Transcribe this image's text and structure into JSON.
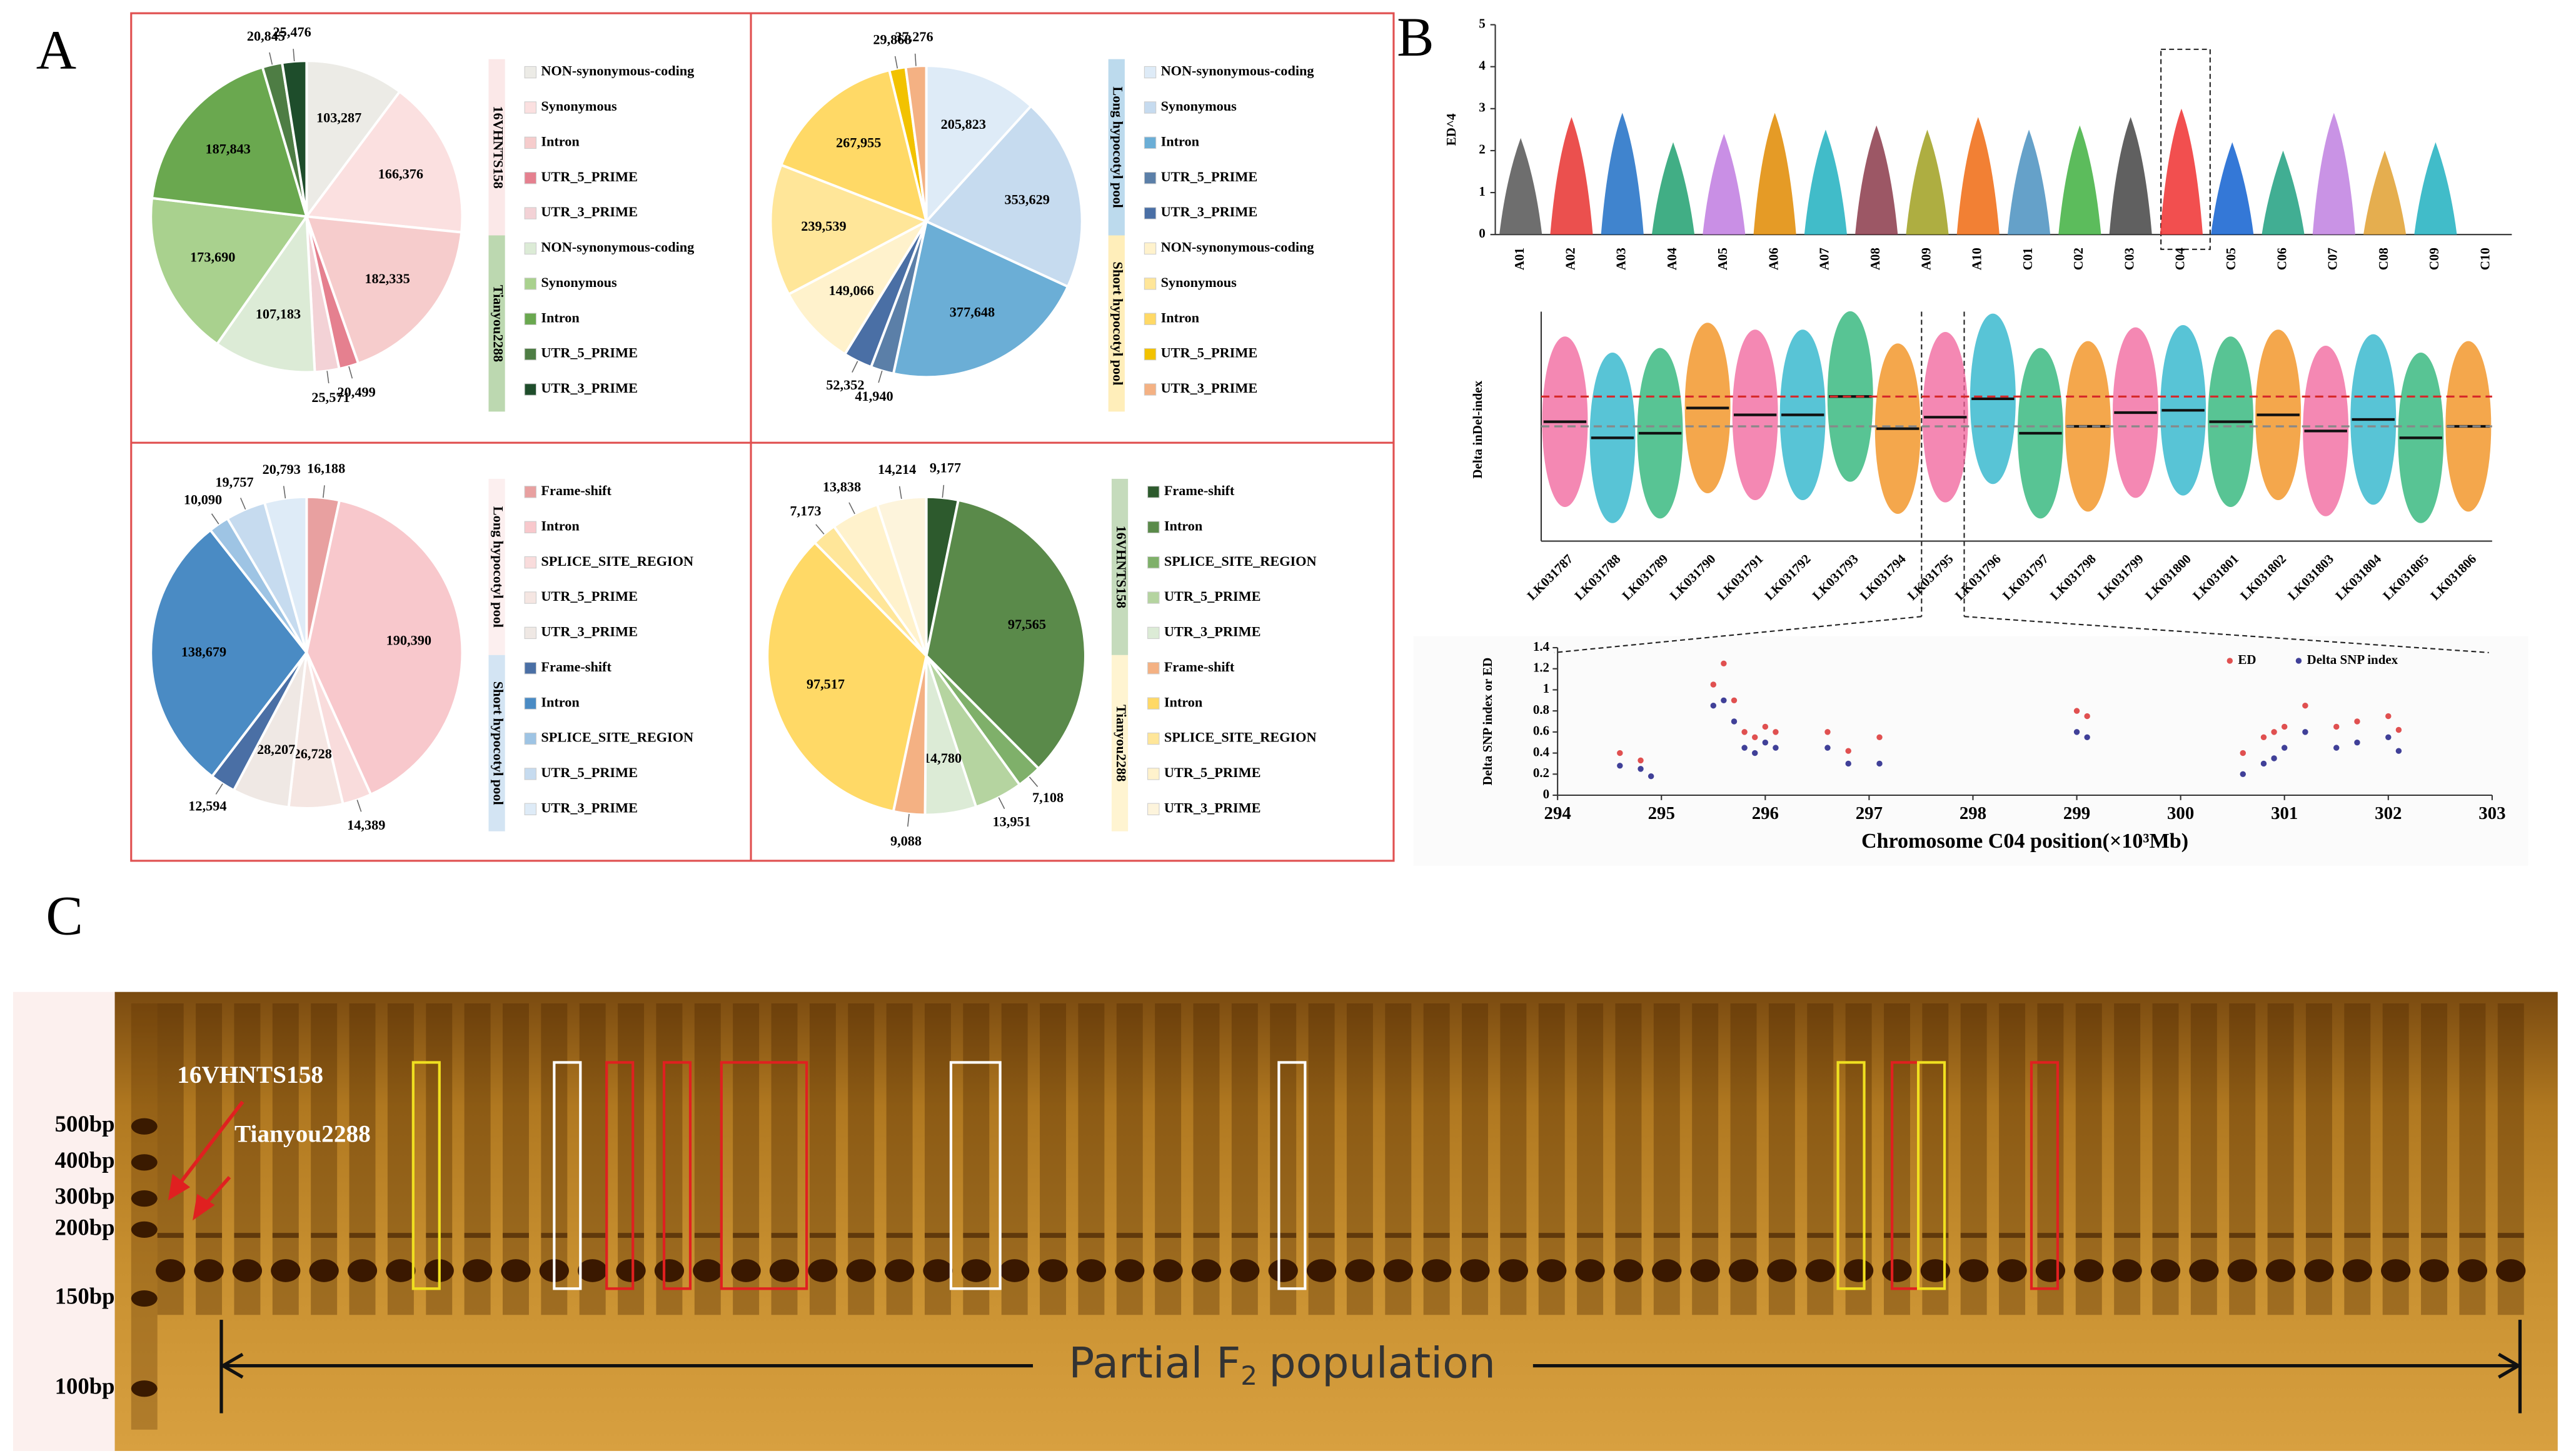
{
  "panel_labels": [
    "A",
    "B",
    "C"
  ],
  "chart_data": [
    {
      "type": "pie",
      "series": [
        {
          "name": "16VHNTS158",
          "categories": [
            "NON-synonymous-coding",
            "Synonymous",
            "Intron",
            "UTR_5_PRIME",
            "UTR_3_PRIME"
          ],
          "values": [
            103287,
            166376,
            182335,
            20499,
            25571
          ],
          "value_labels": [
            "103,287",
            "166,376",
            "182,335",
            "20,499",
            "25,571"
          ],
          "colors": [
            "#ecebe6",
            "#fbe0e0",
            "#f6cccc",
            "#e5808f",
            "#f3d2d6"
          ]
        },
        {
          "name": "Tianyou2288",
          "categories": [
            "NON-synonymous-coding",
            "Synonymous",
            "Intron",
            "UTR_5_PRIME",
            "UTR_3_PRIME"
          ],
          "values": [
            107183,
            173690,
            187843,
            20845,
            25476
          ],
          "values_note": null,
          "value_labels": [
            "107,183",
            "173,690",
            "187,843",
            "20,845",
            "25,476"
          ],
          "colors": [
            "#dcebd6",
            "#a9d18e",
            "#6aa84f",
            "#4e7d44",
            "#1e4d2b"
          ]
        }
      ]
    },
    {
      "type": "pie",
      "series": [
        {
          "name": "Long hypocotyl pool",
          "categories": [
            "NON-synonymous-coding",
            "Synonymous",
            "Intron",
            "UTR_5_PRIME",
            "UTR_3_PRIME"
          ],
          "values": [
            205823,
            353629,
            377648,
            41940,
            52352
          ],
          "value_labels": [
            "205,823",
            "353,629",
            "377,648",
            "41,940",
            "52,352"
          ],
          "colors": [
            "#deebf7",
            "#c6dbef",
            "#6baed6",
            "#5b7fa8",
            "#4a6fa5"
          ]
        },
        {
          "name": "Short hypocotyl pool",
          "categories": [
            "NON-synonymous-coding",
            "Synonymous",
            "Intron",
            "UTR_5_PRIME",
            "UTR_3_PRIME"
          ],
          "values": [
            149066,
            239539,
            267955,
            29868,
            37276
          ],
          "value_labels": [
            "149,066",
            "239,539",
            "267,955",
            "29,868",
            "37,276"
          ],
          "colors": [
            "#fff2cc",
            "#ffe699",
            "#ffd966",
            "#f2c200",
            "#f4b183"
          ]
        }
      ]
    },
    {
      "type": "pie",
      "series": [
        {
          "name": "Long hypocotyl pool",
          "categories": [
            "Frame-shift",
            "Intron",
            "SPLICE_SITE_REGION",
            "UTR_5_PRIME",
            "UTR_3_PRIME"
          ],
          "values": [
            16188,
            190390,
            14389,
            26728,
            28207
          ],
          "value_labels": [
            "16,188",
            "190,390",
            "14,389",
            "26,728",
            "28,207"
          ],
          "colors": [
            "#e8a0a0",
            "#f8c8cc",
            "#f9dcdc",
            "#f5e6e2",
            "#efe8e4"
          ]
        },
        {
          "name": "Short hypocotyl pool",
          "categories": [
            "Frame-shift",
            "Intron",
            "SPLICE_SITE_REGION",
            "UTR_5_PRIME",
            "UTR_3_PRIME"
          ],
          "values": [
            12594,
            138679,
            10090,
            19757,
            20793
          ],
          "value_labels": [
            "12,594",
            "138,679",
            "10,090",
            "19,757",
            "20,793"
          ],
          "colors": [
            "#4a6fa5",
            "#4a8bc4",
            "#9ec4e4",
            "#c6dbef",
            "#deebf7"
          ]
        }
      ]
    },
    {
      "type": "pie",
      "series": [
        {
          "name": "16VHNTS158",
          "categories": [
            "Frame-shift",
            "Intron",
            "SPLICE_SITE_REGION",
            "UTR_5_PRIME",
            "UTR_3_PRIME"
          ],
          "values": [
            9177,
            97565,
            7108,
            13951,
            14780
          ],
          "value_labels": [
            "9,177",
            "97,565",
            "7,108",
            "13,951",
            "14,780"
          ],
          "colors": [
            "#2d5a2d",
            "#5a8a4a",
            "#7fb06a",
            "#b5d4a0",
            "#dcebd6"
          ]
        },
        {
          "name": "Tianyou2288",
          "categories": [
            "Frame-shift",
            "Intron",
            "SPLICE_SITE_REGION",
            "UTR_5_PRIME",
            "UTR_3_PRIME"
          ],
          "values": [
            9088,
            97517,
            7173,
            13838,
            14214
          ],
          "value_labels": [
            "9,088",
            "97,517",
            "7,173",
            "13,838",
            "14,214"
          ],
          "colors": [
            "#f4b183",
            "#ffd966",
            "#ffe699",
            "#fff2cc",
            "#fdf4dc"
          ]
        }
      ]
    },
    {
      "type": "strip",
      "ylabel": "ED^4",
      "categories": [
        "A01",
        "A02",
        "A03",
        "A04",
        "A05",
        "A06",
        "A07",
        "A08",
        "A09",
        "A10",
        "C01",
        "C02",
        "C03",
        "C04",
        "C05",
        "C06",
        "C07",
        "C08",
        "C09",
        "C10"
      ],
      "values": [
        2.3,
        2.8,
        2.9,
        2.2,
        2.4,
        2.9,
        2.5,
        2.6,
        2.5,
        2.8,
        2.5,
        2.6,
        2.8,
        3.0,
        2.2,
        2.0,
        2.9,
        2.0,
        2.2,
        null
      ],
      "colors": [
        "#555555",
        "#e8312f",
        "#1f6fc5",
        "#20a070",
        "#c07be0",
        "#e08a00",
        "#20b0c0",
        "#8b3a4a",
        "#a0a020",
        "#f06a10",
        "#4a90c0",
        "#40b040",
        "#444444",
        "#f03030",
        "#1060d0",
        "#20a080",
        "#c080e0",
        "#e0a030",
        "#20b0c0",
        "#999999"
      ],
      "ylim": [
        0,
        5
      ],
      "yticks": [
        0,
        1,
        2,
        3,
        4,
        5
      ]
    },
    {
      "type": "indel",
      "ylabel": "Delta inDel-index",
      "categories": [
        "LK031787",
        "LK031788",
        "LK031789",
        "LK031790",
        "LK031791",
        "LK031792",
        "LK031793",
        "LK031794",
        "LK031795",
        "LK031796",
        "LK031797",
        "LK031798",
        "LK031799",
        "LK031800",
        "LK031801",
        "LK031802",
        "LK031803",
        "LK031804",
        "LK031805",
        "LK031806"
      ],
      "values": [
        0.52,
        0.45,
        0.47,
        0.58,
        0.55,
        0.55,
        0.63,
        0.49,
        0.54,
        0.62,
        0.47,
        0.5,
        0.56,
        0.57,
        0.52,
        0.55,
        0.48,
        0.53,
        0.45,
        0.5
      ],
      "colors": [
        "#f0609a",
        "#20b0c8",
        "#20b070",
        "#f08a10",
        "#f0609a",
        "#20b0c8",
        "#20b070",
        "#f08a10",
        "#f0609a",
        "#20b0c8",
        "#20b070",
        "#f08a10",
        "#f0609a",
        "#20b0c8",
        "#20b070",
        "#f08a10",
        "#f0609a",
        "#20b0c8",
        "#20b070",
        "#f08a10"
      ],
      "ylim": [
        0,
        1
      ],
      "hlines": [
        {
          "value": 0.63,
          "color": "#d62728"
        },
        {
          "value": 0.5,
          "color": "#888888"
        }
      ]
    },
    {
      "type": "scatter",
      "xlabel": "Chromosome C04 position(×10³Mb)",
      "ylabel": "Delta SNP index or ED",
      "legend": "upper right",
      "xlim": [
        294,
        303
      ],
      "xticks": [
        294,
        295,
        296,
        297,
        298,
        299,
        300,
        301,
        302,
        303
      ],
      "ylim": [
        0,
        1.4
      ],
      "yticks": [
        0,
        0.2,
        0.4,
        0.6,
        0.8,
        1,
        1.2,
        1.4
      ],
      "series": [
        {
          "name": "ED",
          "color": "#e05050",
          "x": [
            294.6,
            294.8,
            295.5,
            295.6,
            295.7,
            295.8,
            295.9,
            296,
            296.1,
            296.6,
            296.8,
            297.1,
            299,
            299.1,
            300.6,
            300.8,
            300.9,
            301,
            301.2,
            301.5,
            301.7,
            302,
            302.1
          ],
          "values": [
            0.4,
            0.33,
            1.05,
            1.25,
            0.9,
            0.6,
            0.55,
            0.65,
            0.6,
            0.6,
            0.42,
            0.55,
            0.8,
            0.75,
            0.4,
            0.55,
            0.6,
            0.65,
            0.85,
            0.65,
            0.7,
            0.75,
            0.62
          ]
        },
        {
          "name": "Delta SNP index",
          "color": "#404098",
          "x": [
            294.6,
            294.8,
            294.9,
            295.5,
            295.6,
            295.7,
            295.8,
            295.9,
            296,
            296.1,
            296.6,
            296.8,
            297.1,
            299,
            299.1,
            300.6,
            300.8,
            300.9,
            301,
            301.2,
            301.5,
            301.7,
            302,
            302.1
          ],
          "values": [
            0.28,
            0.25,
            0.18,
            0.85,
            0.9,
            0.7,
            0.45,
            0.4,
            0.5,
            0.45,
            0.45,
            0.3,
            0.3,
            0.6,
            0.55,
            0.2,
            0.3,
            0.35,
            0.45,
            0.6,
            0.45,
            0.5,
            0.55,
            0.42
          ]
        }
      ]
    }
  ],
  "gel": {
    "samples": [
      "16VHNTS158",
      "Tianyou2288"
    ],
    "ladder": [
      "500bp",
      "400bp",
      "300bp",
      "200bp",
      "150bp",
      "100bp"
    ],
    "population_label": {
      "text": "Partial F",
      "subscript": "2",
      "suffix": "population"
    }
  }
}
